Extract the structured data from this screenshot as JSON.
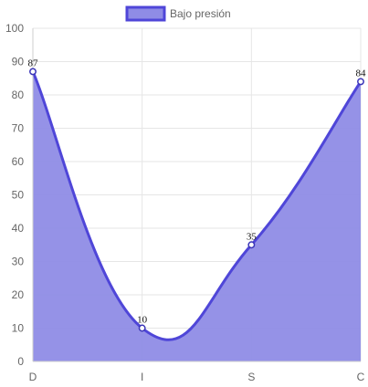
{
  "chart_data": {
    "type": "area",
    "categories": [
      "D",
      "I",
      "S",
      "C"
    ],
    "series": [
      {
        "name": "Bajo presión",
        "values": [
          87,
          10,
          35,
          84
        ]
      }
    ],
    "ylim": [
      0,
      100
    ],
    "yticks": [
      0,
      10,
      20,
      30,
      40,
      50,
      60,
      70,
      80,
      90,
      100
    ],
    "grid": true,
    "legend_position": "top",
    "data_labels": true,
    "smooth": true,
    "colors": {
      "line": "#4f46d8",
      "fill": "#8f8ce6",
      "point_fill": "#ffffff",
      "point_stroke": "#3b35b8",
      "grid": "#e6e6e6",
      "axis": "#cfcfcf",
      "ticks": "#666666"
    }
  }
}
